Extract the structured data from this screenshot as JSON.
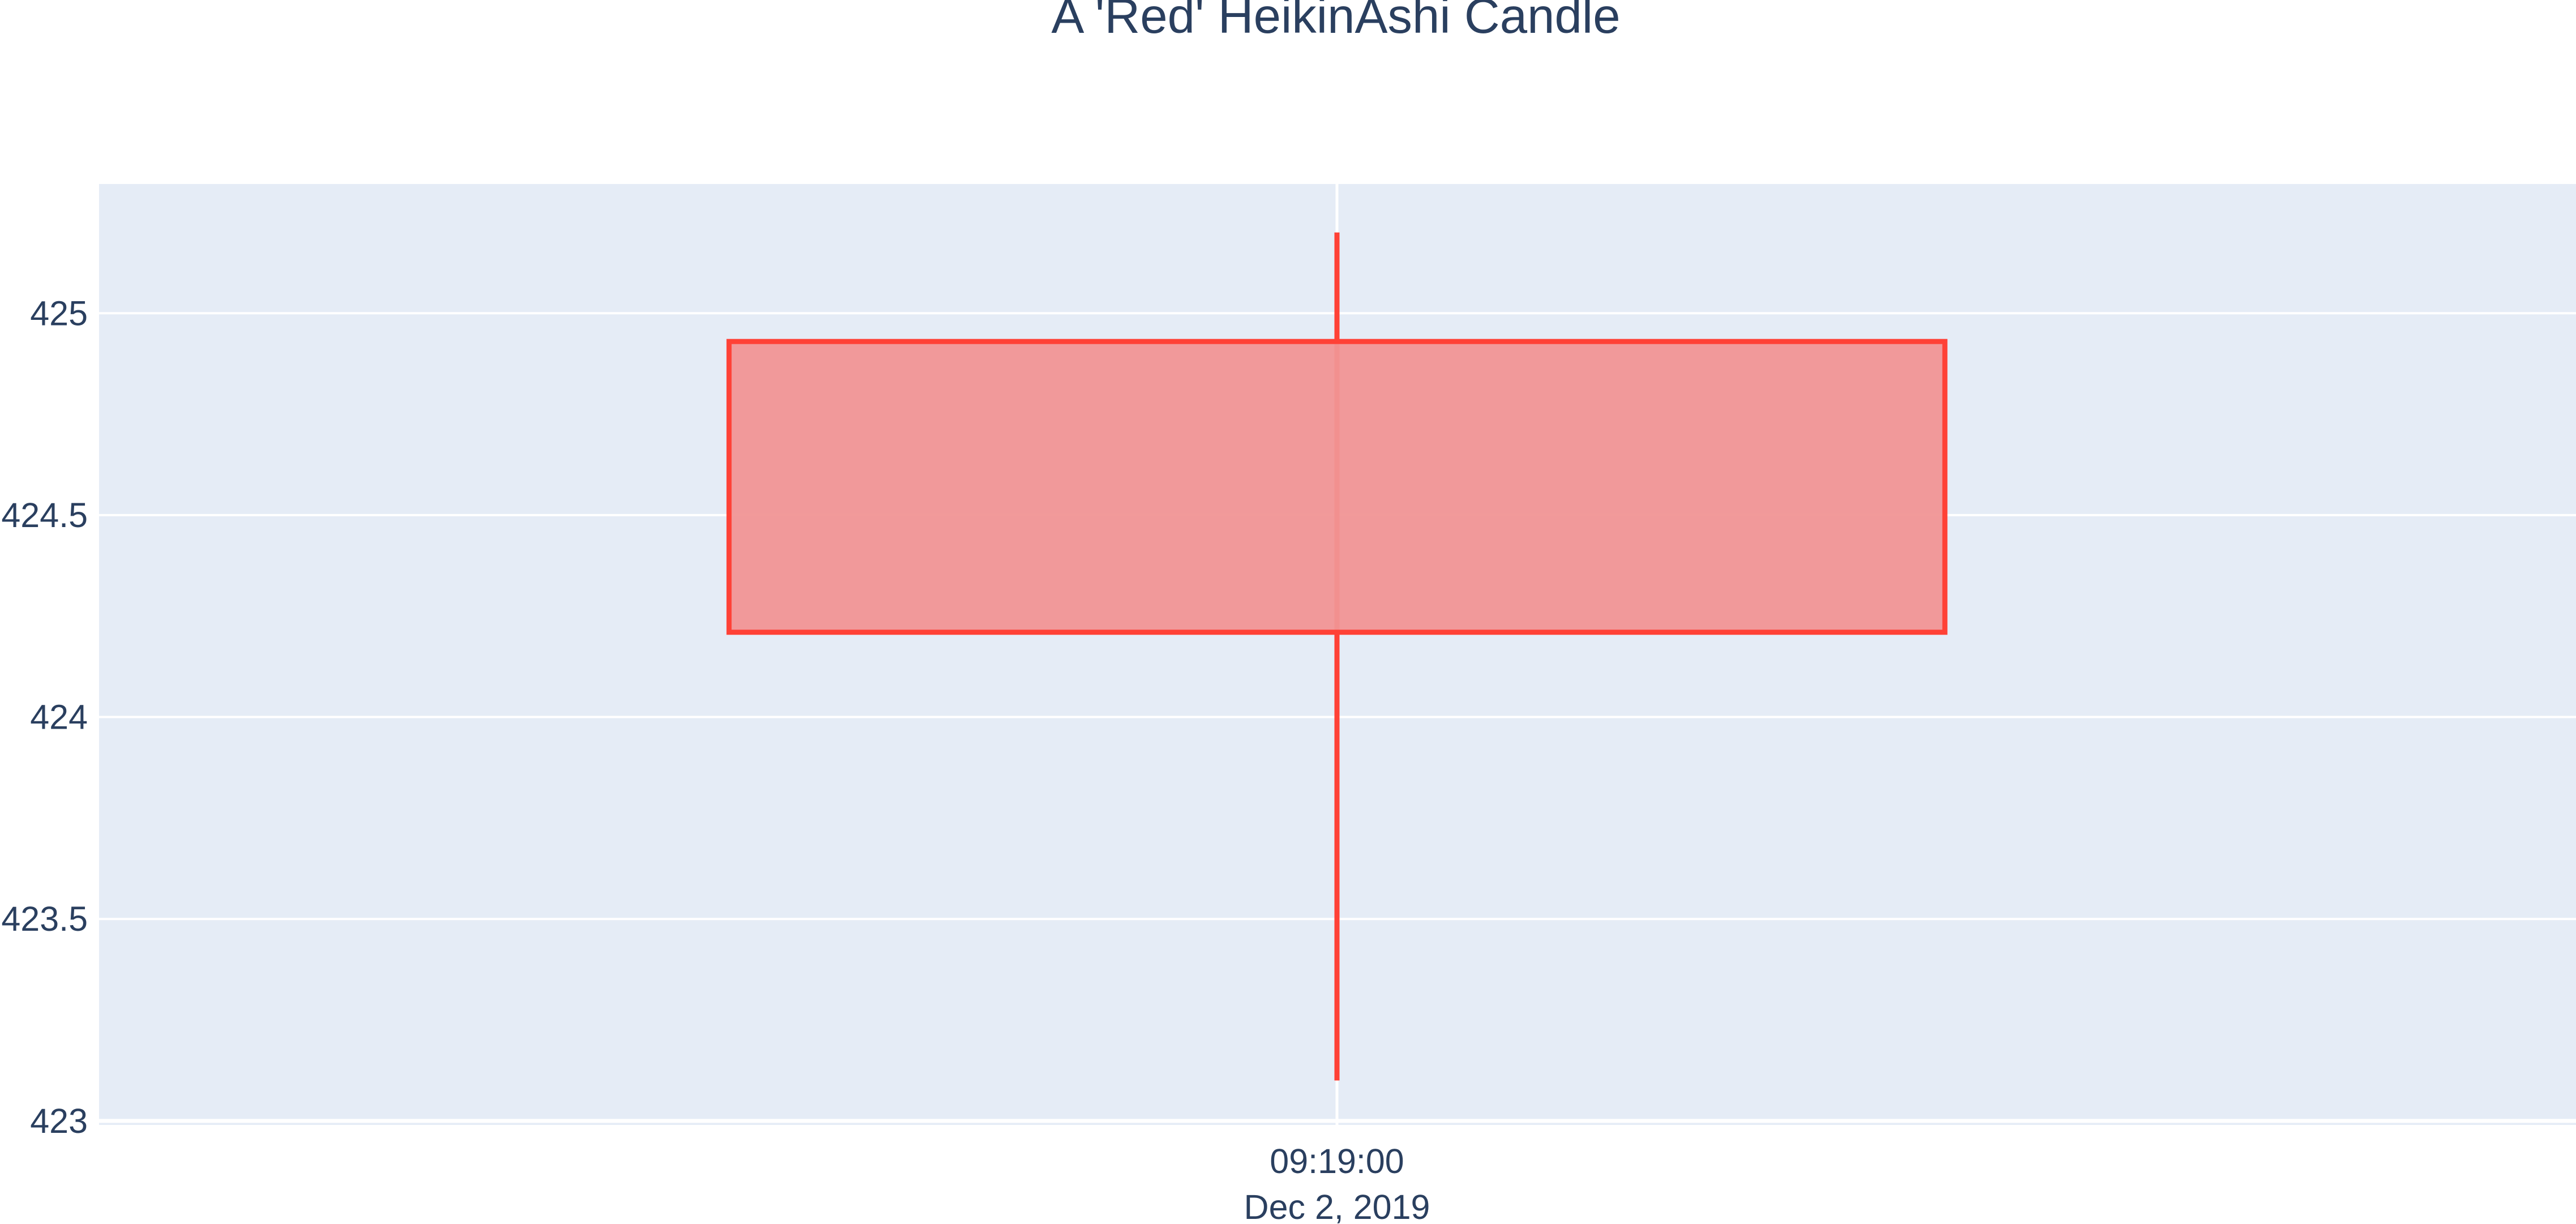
{
  "chart_data": {
    "type": "candlestick",
    "title": "A 'Red' HeikinAshi Candle",
    "xlabel": "",
    "ylabel": "",
    "x_tick_labels": [
      {
        "time": "09:19:00",
        "date": "Dec 2, 2019"
      }
    ],
    "y_ticks": [
      423,
      423.5,
      424,
      424.5,
      425
    ],
    "y_tick_labels": [
      "423",
      "423.5",
      "424",
      "424.5",
      "425"
    ],
    "ylim": [
      422.99,
      425.32
    ],
    "grid": true,
    "legend": false,
    "candles": [
      {
        "x": "2019-12-02 09:19:00",
        "open": 424.93,
        "high": 425.2,
        "low": 423.1,
        "close": 424.21,
        "direction": "decreasing"
      }
    ],
    "colors": {
      "plot_background": "#e5ecf6",
      "grid": "#ffffff",
      "decreasing_line": "#ff4136",
      "decreasing_fill": "#f19595",
      "text": "#2a3f5f"
    }
  }
}
